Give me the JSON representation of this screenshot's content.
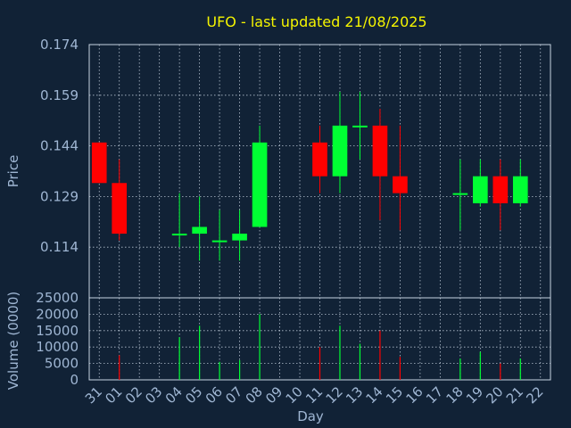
{
  "chart_data": [
    {
      "type": "candlestick",
      "title": "UFO - last updated 21/08/2025",
      "ylabel": "Price",
      "ylim": [
        0.099,
        0.174
      ],
      "y_ticks": [
        "0.174",
        "0.159",
        "0.144",
        "0.129",
        "0.114"
      ],
      "y_tick_values": [
        0.174,
        0.159,
        0.144,
        0.129,
        0.114
      ],
      "grid": true,
      "colors": {
        "up": "#00ff33",
        "down": "#ff0000",
        "background": "#112236",
        "text": "#9fb6d3",
        "title": "#f4f400"
      },
      "series": [
        {
          "day": "31",
          "open": 0.145,
          "high": 0.145,
          "low": 0.133,
          "close": 0.133
        },
        {
          "day": "01",
          "open": 0.133,
          "high": 0.14,
          "low": 0.116,
          "close": 0.118
        },
        {
          "day": "04",
          "open": 0.118,
          "high": 0.13,
          "low": 0.114,
          "close": 0.118
        },
        {
          "day": "05",
          "open": 0.118,
          "high": 0.129,
          "low": 0.11,
          "close": 0.12
        },
        {
          "day": "06",
          "open": 0.116,
          "high": 0.125,
          "low": 0.11,
          "close": 0.116
        },
        {
          "day": "07",
          "open": 0.116,
          "high": 0.125,
          "low": 0.11,
          "close": 0.118
        },
        {
          "day": "08",
          "open": 0.12,
          "high": 0.15,
          "low": 0.12,
          "close": 0.145
        },
        {
          "day": "11",
          "open": 0.145,
          "high": 0.15,
          "low": 0.13,
          "close": 0.135
        },
        {
          "day": "12",
          "open": 0.135,
          "high": 0.16,
          "low": 0.13,
          "close": 0.15
        },
        {
          "day": "13",
          "open": 0.15,
          "high": 0.16,
          "low": 0.14,
          "close": 0.15
        },
        {
          "day": "14",
          "open": 0.15,
          "high": 0.155,
          "low": 0.122,
          "close": 0.135
        },
        {
          "day": "15",
          "open": 0.135,
          "high": 0.15,
          "low": 0.119,
          "close": 0.13
        },
        {
          "day": "18",
          "open": 0.13,
          "high": 0.14,
          "low": 0.119,
          "close": 0.13
        },
        {
          "day": "19",
          "open": 0.127,
          "high": 0.14,
          "low": 0.126,
          "close": 0.135
        },
        {
          "day": "20",
          "open": 0.135,
          "high": 0.14,
          "low": 0.119,
          "close": 0.127
        },
        {
          "day": "21",
          "open": 0.127,
          "high": 0.14,
          "low": 0.126,
          "close": 0.135
        }
      ]
    },
    {
      "type": "bar",
      "xlabel": "Day",
      "ylabel": "Volume (0000)",
      "ylim": [
        0,
        25000
      ],
      "y_ticks": [
        "25000",
        "20000",
        "15000",
        "10000",
        "5000",
        "0"
      ],
      "y_tick_values": [
        25000,
        20000,
        15000,
        10000,
        5000,
        0
      ],
      "categories": [
        "31",
        "01",
        "02",
        "03",
        "04",
        "05",
        "06",
        "07",
        "08",
        "09",
        "10",
        "11",
        "12",
        "13",
        "14",
        "15",
        "16",
        "17",
        "18",
        "19",
        "20",
        "21",
        "22"
      ],
      "values": [
        0,
        7500,
        0,
        0,
        13000,
        16500,
        5500,
        6000,
        20000,
        0,
        0,
        10000,
        16500,
        11000,
        15000,
        7000,
        0,
        0,
        6500,
        8500,
        5000,
        6500,
        0
      ],
      "bar_colors": [
        "#00ff33",
        "#ff0000",
        "#00ff33",
        "#00ff33",
        "#00ff33",
        "#00ff33",
        "#00ff33",
        "#00ff33",
        "#00ff33",
        "#00ff33",
        "#00ff33",
        "#ff0000",
        "#00ff33",
        "#00ff33",
        "#ff0000",
        "#ff0000",
        "#00ff33",
        "#00ff33",
        "#00ff33",
        "#00ff33",
        "#ff0000",
        "#00ff33",
        "#00ff33"
      ]
    }
  ]
}
